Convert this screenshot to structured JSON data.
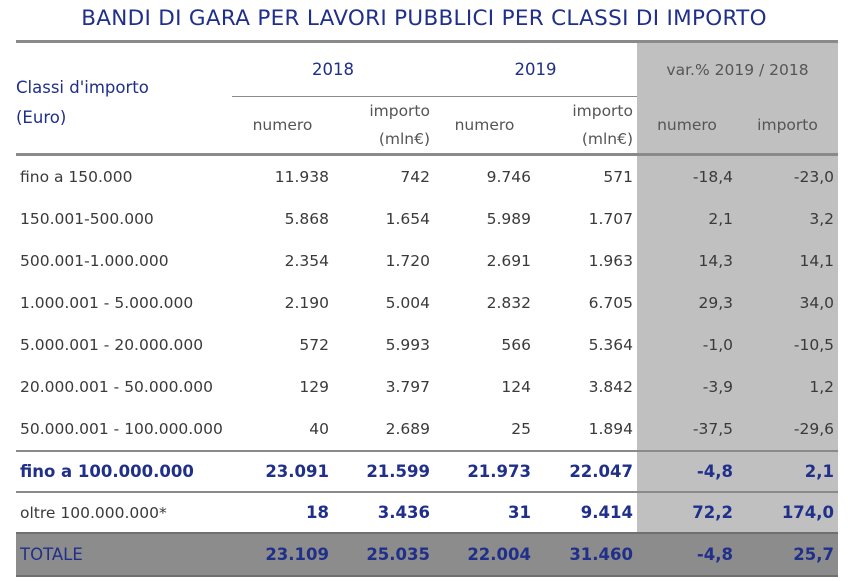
{
  "title": "BANDI DI GARA PER LAVORI PUBBLICI PER CLASSI DI IMPORTO",
  "header": {
    "classi_line1": "Classi d'importo",
    "classi_line2": "(Euro)",
    "year_2018": "2018",
    "year_2019": "2019",
    "var_label": "var.% 2019 / 2018",
    "numero": "numero",
    "importo_line1": "importo",
    "importo_line2": "(mln€)",
    "var_numero": "numero",
    "var_importo": "importo"
  },
  "rows": [
    {
      "label": "fino a 150.000",
      "n2018": "11.938",
      "i2018": "742",
      "n2019": "9.746",
      "i2019": "571",
      "vn": "-18,4",
      "vi": "-23,0"
    },
    {
      "label": "150.001-500.000",
      "n2018": "5.868",
      "i2018": "1.654",
      "n2019": "5.989",
      "i2019": "1.707",
      "vn": "2,1",
      "vi": "3,2"
    },
    {
      "label": "500.001-1.000.000",
      "n2018": "2.354",
      "i2018": "1.720",
      "n2019": "2.691",
      "i2019": "1.963",
      "vn": "14,3",
      "vi": "14,1"
    },
    {
      "label": "1.000.001 - 5.000.000",
      "n2018": "2.190",
      "i2018": "5.004",
      "n2019": "2.832",
      "i2019": "6.705",
      "vn": "29,3",
      "vi": "34,0"
    },
    {
      "label": "5.000.001 - 20.000.000",
      "n2018": "572",
      "i2018": "5.993",
      "n2019": "566",
      "i2019": "5.364",
      "vn": "-1,0",
      "vi": "-10,5"
    },
    {
      "label": "20.000.001 - 50.000.000",
      "n2018": "129",
      "i2018": "3.797",
      "n2019": "124",
      "i2019": "3.842",
      "vn": "-3,9",
      "vi": "1,2"
    },
    {
      "label": "50.000.001 - 100.000.000",
      "n2018": "40",
      "i2018": "2.689",
      "n2019": "25",
      "i2019": "1.894",
      "vn": "-37,5",
      "vi": "-29,6"
    }
  ],
  "subtotal": {
    "label": "fino a 100.000.000",
    "n2018": "23.091",
    "i2018": "21.599",
    "n2019": "21.973",
    "i2019": "22.047",
    "vn": "-4,8",
    "vi": "2,1"
  },
  "oltre": {
    "label": "oltre 100.000.000*",
    "n2018": "18",
    "i2018": "3.436",
    "n2019": "31",
    "i2019": "9.414",
    "vn": "72,2",
    "vi": "174,0"
  },
  "totale": {
    "label": "TOTALE",
    "n2018": "23.109",
    "i2018": "25.035",
    "n2019": "22.004",
    "i2019": "31.460",
    "vn": "-4,8",
    "vi": "25,7"
  }
}
